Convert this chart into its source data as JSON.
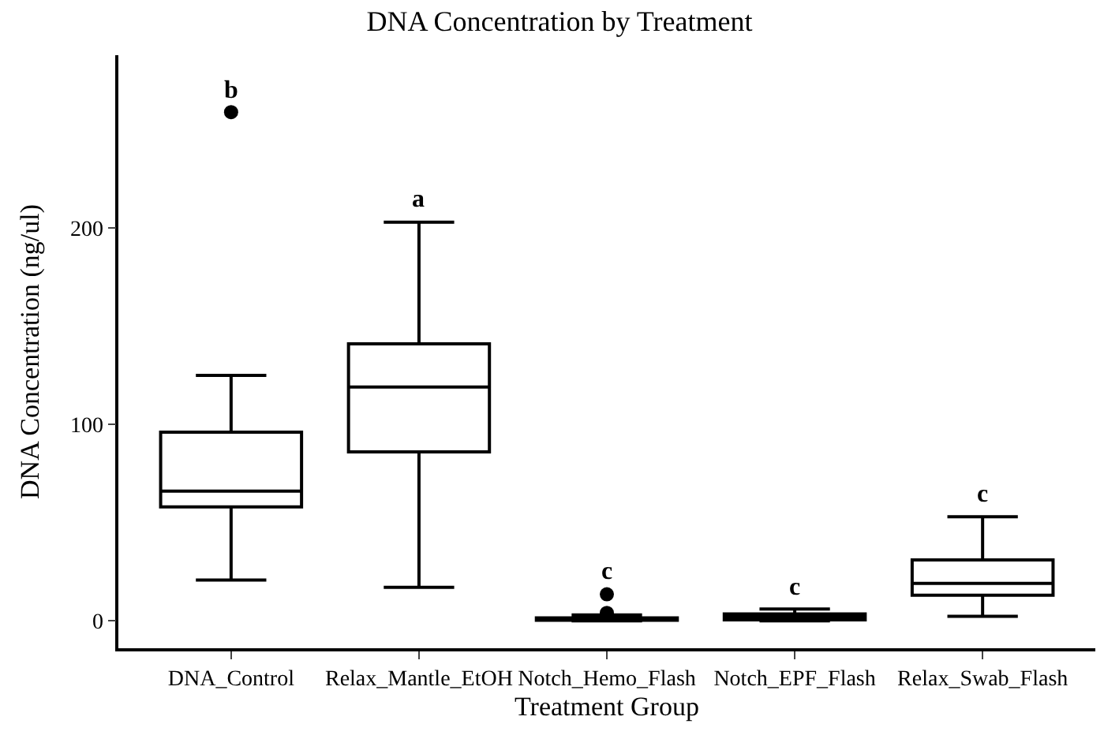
{
  "chart_data": {
    "type": "box",
    "title": "DNA Concentration by Treatment",
    "xlabel": "Treatment Group",
    "ylabel": "DNA Concentration (ng/ul)",
    "categories": [
      "DNA_Control",
      "Relax_Mantle_EtOH",
      "Notch_Hemo_Flash",
      "Notch_EPF_Flash",
      "Relax_Swab_Flash"
    ],
    "boxes": [
      {
        "low": 20.7,
        "q1": 58,
        "median": 66,
        "q3": 96,
        "high": 125,
        "outliers": [
          259
        ]
      },
      {
        "low": 17,
        "q1": 86,
        "median": 119,
        "q3": 141,
        "high": 203
      },
      {
        "low": 0,
        "q1": 0.3,
        "median": 0.8,
        "q3": 1.5,
        "high": 3,
        "outliers": [
          4,
          13.5
        ]
      },
      {
        "low": 0,
        "q1": 0.5,
        "median": 2,
        "q3": 3.5,
        "high": 6
      },
      {
        "low": 2.3,
        "q1": 13,
        "median": 19,
        "q3": 31,
        "high": 53
      }
    ],
    "color": "#000000",
    "ylim": [
      -14,
      288
    ],
    "yticks": [
      0,
      100,
      200
    ],
    "grid": false,
    "legend": false,
    "annotations": [
      "b",
      "a",
      "c",
      "c",
      "c"
    ]
  }
}
